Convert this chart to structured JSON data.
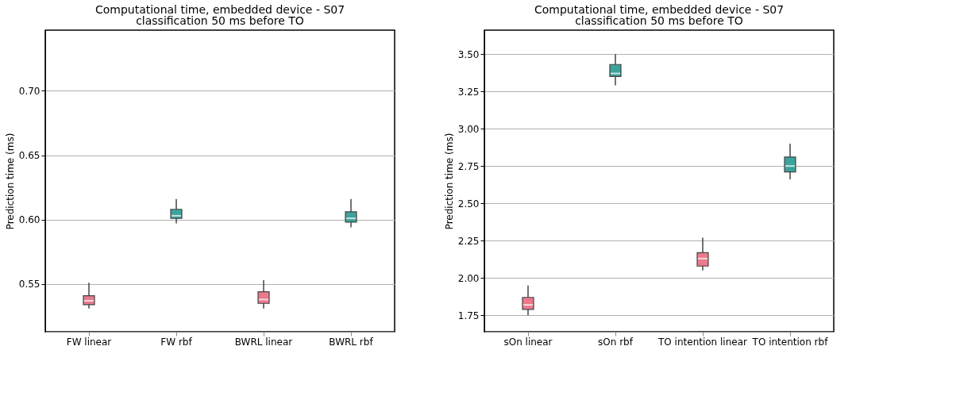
{
  "chart_data": [
    {
      "type": "box",
      "title": "Computational time, embedded device - S07",
      "subtitle": "classification 50 ms before TO",
      "ylabel": "Prediction time (ms)",
      "categories": [
        "FW linear",
        "FW rbf",
        "BWRL linear",
        "BWRL rbf"
      ],
      "colors": [
        "#ea7a8c",
        "#3ba39b",
        "#ea7a8c",
        "#3ba39b"
      ],
      "boxes": [
        {
          "low": 0.531,
          "q1": 0.534,
          "median": 0.537,
          "q3": 0.541,
          "high": 0.551
        },
        {
          "low": 0.597,
          "q1": 0.601,
          "median": 0.603,
          "q3": 0.608,
          "high": 0.616
        },
        {
          "low": 0.531,
          "q1": 0.535,
          "median": 0.538,
          "q3": 0.544,
          "high": 0.553
        },
        {
          "low": 0.594,
          "q1": 0.598,
          "median": 0.601,
          "q3": 0.606,
          "high": 0.616
        }
      ],
      "ylim": [
        0.513,
        0.747
      ],
      "yticks": [
        0.55,
        {
          "value": 0.6,
          "label": "0.60"
        },
        0.65,
        {
          "value": 0.7,
          "label": "0.70"
        }
      ],
      "grid": "y"
    },
    {
      "type": "box",
      "title": "Computational time, embedded device - S07",
      "subtitle": "classification 50 ms before TO",
      "ylabel": "Prediction time (ms)",
      "categories": [
        "sOn linear",
        "sOn rbf",
        "TO intention linear",
        "TO intention rbf"
      ],
      "colors": [
        "#ea7a8c",
        "#3ba39b",
        "#ea7a8c",
        "#3ba39b"
      ],
      "boxes": [
        {
          "low": 1.75,
          "q1": 1.79,
          "median": 1.82,
          "q3": 1.87,
          "high": 1.95
        },
        {
          "low": 3.29,
          "q1": 3.35,
          "median": 3.37,
          "q3": 3.43,
          "high": 3.5
        },
        {
          "low": 2.05,
          "q1": 2.08,
          "median": 2.13,
          "q3": 2.17,
          "high": 2.27
        },
        {
          "low": 2.66,
          "q1": 2.71,
          "median": 2.75,
          "q3": 2.81,
          "high": 2.9
        }
      ],
      "ylim": [
        1.64,
        3.66
      ],
      "yticks": [
        {
          "value": 1.75,
          "label": "1.75"
        },
        {
          "value": 2.0,
          "label": "2.00"
        },
        {
          "value": 2.25,
          "label": "2.25"
        },
        {
          "value": 2.5,
          "label": "2.50"
        },
        {
          "value": 2.75,
          "label": "2.75"
        },
        {
          "value": 3.0,
          "label": "3.00"
        },
        {
          "value": 3.25,
          "label": "3.25"
        },
        {
          "value": 3.5,
          "label": "3.50"
        }
      ],
      "grid": "y"
    }
  ]
}
